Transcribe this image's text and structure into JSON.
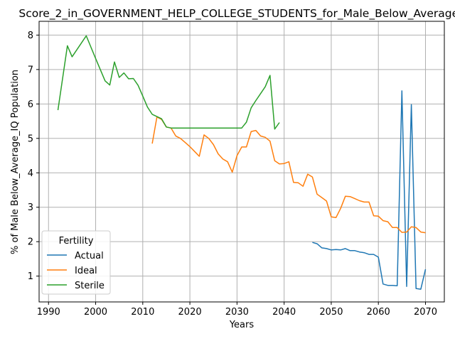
{
  "chart_data": {
    "type": "line",
    "title": "Score_2_in_GOVERNMENT_HELP_COLLEGE_STUDENTS_for_Male_Below_Average_IQ",
    "xlabel": "Years",
    "ylabel": "% of Male Below_Average_IQ Population",
    "xlim": [
      1988,
      2074
    ],
    "ylim": [
      0.25,
      8.4
    ],
    "xticks": [
      1990,
      2000,
      2010,
      2020,
      2030,
      2040,
      2050,
      2060,
      2070
    ],
    "yticks": [
      1,
      2,
      3,
      4,
      5,
      6,
      7,
      8
    ],
    "grid": true,
    "legend": {
      "title": "Fertility",
      "placement": "lower-left"
    },
    "series": [
      {
        "name": "Actual",
        "color": "#1f77b4",
        "x": [
          2046,
          2047,
          2048,
          2049,
          2050,
          2051,
          2052,
          2053,
          2054,
          2055,
          2056,
          2057,
          2058,
          2059,
          2060,
          2061,
          2062,
          2063,
          2064,
          2065,
          2066,
          2067,
          2068,
          2069,
          2070
        ],
        "y": [
          1.98,
          1.94,
          1.82,
          1.8,
          1.76,
          1.77,
          1.76,
          1.8,
          1.74,
          1.74,
          1.7,
          1.68,
          1.63,
          1.63,
          1.55,
          0.77,
          0.73,
          0.73,
          0.72,
          6.38,
          0.7,
          5.98,
          0.64,
          0.62,
          1.2
        ]
      },
      {
        "name": "Ideal",
        "color": "#ff7f0e",
        "x": [
          2012,
          2013,
          2014,
          2015,
          2016,
          2017,
          2018,
          2019,
          2020,
          2021,
          2022,
          2023,
          2024,
          2025,
          2026,
          2027,
          2028,
          2029,
          2030,
          2031,
          2032,
          2033,
          2034,
          2035,
          2036,
          2037,
          2038,
          2039,
          2040,
          2041,
          2042,
          2043,
          2044,
          2045,
          2046,
          2047,
          2048,
          2049,
          2050,
          2051,
          2052,
          2053,
          2054,
          2055,
          2056,
          2057,
          2058,
          2059,
          2060,
          2061,
          2062,
          2063,
          2064,
          2065,
          2066,
          2067,
          2068,
          2069,
          2070
        ],
        "y": [
          4.85,
          5.62,
          5.55,
          5.33,
          5.3,
          5.07,
          5.0,
          4.88,
          4.76,
          4.62,
          4.48,
          5.1,
          5.0,
          4.82,
          4.55,
          4.4,
          4.32,
          4.02,
          4.5,
          4.75,
          4.75,
          5.2,
          5.23,
          5.07,
          5.03,
          4.92,
          4.35,
          4.26,
          4.27,
          4.32,
          3.72,
          3.71,
          3.61,
          3.96,
          3.88,
          3.38,
          3.28,
          3.18,
          2.72,
          2.7,
          2.97,
          3.32,
          3.31,
          3.25,
          3.19,
          3.15,
          3.15,
          2.75,
          2.74,
          2.61,
          2.58,
          2.41,
          2.41,
          2.27,
          2.28,
          2.43,
          2.41,
          2.28,
          2.26
        ]
      },
      {
        "name": "Sterile",
        "color": "#2ca02c",
        "x": [
          1992,
          1994,
          1995,
          1998,
          2000,
          2002,
          2003,
          2004,
          2005,
          2006,
          2007,
          2008,
          2009,
          2010,
          2011,
          2012,
          2014,
          2015,
          2016,
          2017,
          2018,
          2019,
          2020,
          2021,
          2022,
          2023,
          2024,
          2025,
          2026,
          2027,
          2028,
          2029,
          2030,
          2031,
          2032,
          2033,
          2034,
          2035,
          2036,
          2037,
          2038,
          2039
        ],
        "y": [
          5.82,
          7.69,
          7.37,
          7.98,
          7.32,
          6.67,
          6.55,
          7.22,
          6.77,
          6.9,
          6.73,
          6.74,
          6.54,
          6.23,
          5.91,
          5.7,
          5.57,
          5.33,
          5.3,
          5.3,
          5.3,
          5.3,
          5.3,
          5.3,
          5.3,
          5.3,
          5.3,
          5.3,
          5.3,
          5.3,
          5.3,
          5.3,
          5.3,
          5.3,
          5.47,
          5.89,
          6.1,
          6.3,
          6.5,
          6.83,
          5.27,
          5.46
        ]
      }
    ]
  }
}
